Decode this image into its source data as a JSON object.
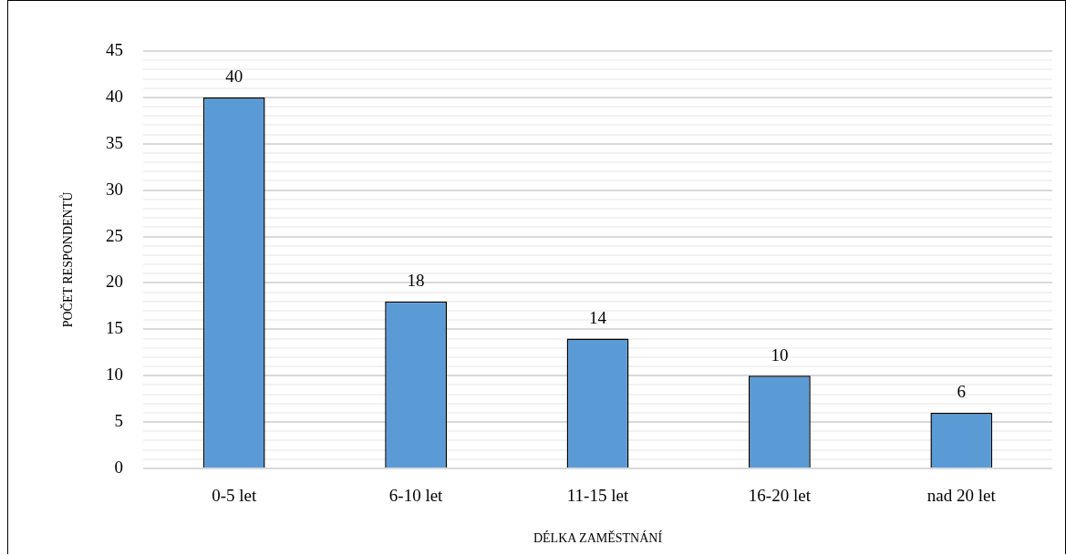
{
  "chart_data": {
    "type": "bar",
    "xlabel": "DÉLKA ZAMĚSTNÁNÍ",
    "ylabel": "POČET RESPONDENTŮ",
    "categories": [
      "0-5 let",
      "6-10 let",
      "11-15 let",
      "16-20 let",
      "nad 20 let"
    ],
    "values": [
      40,
      18,
      14,
      10,
      6
    ],
    "color": "#5b9bd5",
    "ylim": [
      0,
      45
    ],
    "yticks": [
      0,
      {
        "value": 1,
        "label": null
      },
      {
        "value": 2,
        "label": null
      },
      {
        "value": 3,
        "label": null
      },
      {
        "value": 4,
        "label": null
      },
      5,
      {
        "value": 6,
        "label": null
      },
      {
        "value": 7,
        "label": null
      },
      {
        "value": 8,
        "label": null
      },
      {
        "value": 9,
        "label": null
      },
      10,
      {
        "value": 11,
        "label": null
      },
      {
        "value": 12,
        "label": null
      },
      {
        "value": 13,
        "label": null
      },
      {
        "value": 14,
        "label": null
      },
      15,
      {
        "value": 16,
        "label": null
      },
      {
        "value": 17,
        "label": null
      },
      {
        "value": 18,
        "label": null
      },
      {
        "value": 19,
        "label": null
      },
      20,
      {
        "value": 21,
        "label": null
      },
      {
        "value": 22,
        "label": null
      },
      {
        "value": 23,
        "label": null
      },
      {
        "value": 24,
        "label": null
      },
      25,
      {
        "value": 26,
        "label": null
      },
      {
        "value": 27,
        "label": null
      },
      {
        "value": 28,
        "label": null
      },
      {
        "value": 29,
        "label": null
      },
      30,
      {
        "value": 31,
        "label": null
      },
      {
        "value": 32,
        "label": null
      },
      {
        "value": 33,
        "label": null
      },
      {
        "value": 34,
        "label": null
      },
      35,
      {
        "value": 36,
        "label": null
      },
      {
        "value": 37,
        "label": null
      },
      {
        "value": 38,
        "label": null
      },
      {
        "value": 39,
        "label": null
      },
      40,
      {
        "value": 41,
        "label": null
      },
      {
        "value": 42,
        "label": null
      },
      {
        "value": 43,
        "label": null
      },
      {
        "value": 44,
        "label": null
      },
      45
    ],
    "grid": true,
    "data_labels": true
  }
}
